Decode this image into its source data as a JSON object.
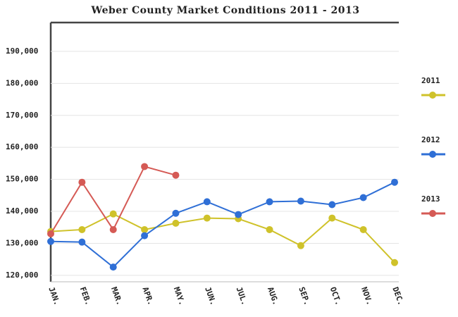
{
  "chart_data": {
    "type": "line",
    "title": "Weber County Market Conditions 2011 - 2013",
    "categories": [
      "JAN.",
      "FEB.",
      "MAR.",
      "APR.",
      "MAY.",
      "JUN.",
      "JUL.",
      "AUG.",
      "SEP.",
      "OCT.",
      "NOV.",
      "DEC."
    ],
    "series": [
      {
        "name": "2011",
        "color": "#cfc22a",
        "values": [
          133700,
          134300,
          139200,
          134300,
          136300,
          137900,
          137700,
          134300,
          129300,
          137900,
          134300,
          124000
        ]
      },
      {
        "name": "2012",
        "color": "#2f6fd6",
        "values": [
          130600,
          130400,
          122600,
          132400,
          139400,
          143000,
          139000,
          143000,
          143200,
          142100,
          144300,
          149100
        ]
      },
      {
        "name": "2013",
        "color": "#d55a55",
        "values": [
          133000,
          149100,
          134300,
          154000,
          151300,
          null,
          null,
          null,
          null,
          null,
          null,
          null
        ]
      }
    ],
    "ylim": [
      118000,
      199000
    ],
    "yticks": [
      {
        "value": 120000,
        "label": "120,000"
      },
      {
        "value": 130000,
        "label": "130,000"
      },
      {
        "value": 140000,
        "label": "140,000"
      },
      {
        "value": 150000,
        "label": "150,000"
      },
      {
        "value": 160000,
        "label": "160,000"
      },
      {
        "value": 170000,
        "label": "170,000"
      },
      {
        "value": 180000,
        "label": "180,000"
      },
      {
        "value": 190000,
        "label": "190,000"
      }
    ],
    "grid": true,
    "legend": "right"
  }
}
